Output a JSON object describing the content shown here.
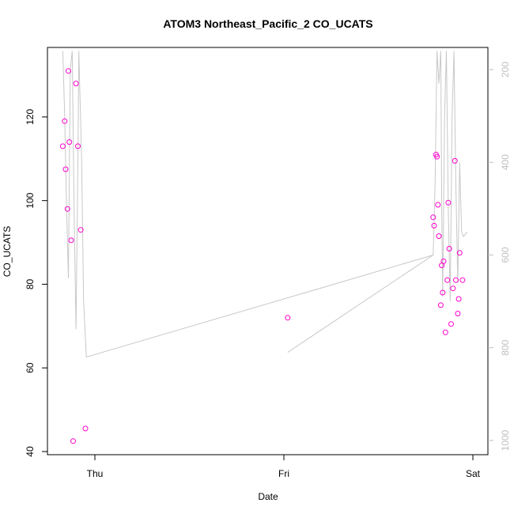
{
  "chart_data": {
    "type": "scatter",
    "title": "ATOM3 Northeast_Pacific_2 CO_UCATS",
    "xlabel": "Date",
    "ylabel": "CO_UCATS",
    "x_tick_labels": [
      "Thu",
      "Fri",
      "Sat"
    ],
    "x_range_days": [
      -0.2,
      2.0
    ],
    "ylim": [
      40,
      135
    ],
    "y_ticks": [
      40,
      60,
      80,
      100,
      120
    ],
    "y2_ticks": [
      200,
      400,
      600,
      800,
      1000
    ],
    "y2lim": [
      160,
      1040
    ],
    "y2_reversed": true,
    "grid": false,
    "colors": {
      "points": "#ff00cc",
      "altitude_line": "#c8c8c8",
      "right_axis": "#bfbfbf"
    },
    "series": [
      {
        "role": "points",
        "points": [
          [
            -0.17,
            113
          ],
          [
            -0.16,
            119
          ],
          [
            -0.155,
            107.5
          ],
          [
            -0.145,
            98
          ],
          [
            -0.14,
            131
          ],
          [
            -0.135,
            114
          ],
          [
            -0.125,
            90.5
          ],
          [
            -0.115,
            42.5
          ],
          [
            -0.1,
            128
          ],
          [
            -0.09,
            113
          ],
          [
            -0.075,
            93
          ],
          [
            -0.05,
            45.5
          ],
          [
            1.02,
            72
          ],
          [
            1.79,
            96
          ],
          [
            1.795,
            94
          ],
          [
            1.805,
            111
          ],
          [
            1.81,
            110.5
          ],
          [
            1.815,
            99
          ],
          [
            1.82,
            91.5
          ],
          [
            1.83,
            75
          ],
          [
            1.835,
            84.5
          ],
          [
            1.84,
            78
          ],
          [
            1.845,
            85.5
          ],
          [
            1.855,
            68.5
          ],
          [
            1.865,
            81
          ],
          [
            1.87,
            99.5
          ],
          [
            1.875,
            88.5
          ],
          [
            1.885,
            70.5
          ],
          [
            1.895,
            79
          ],
          [
            1.905,
            109.5
          ],
          [
            1.91,
            81
          ],
          [
            1.92,
            73
          ],
          [
            1.925,
            76.5
          ],
          [
            1.93,
            87.5
          ],
          [
            1.945,
            81
          ]
        ]
      },
      {
        "role": "altitude_line",
        "segments": [
          [
            [
              -0.17,
              160
            ],
            [
              -0.16,
              300
            ],
            [
              -0.15,
              500
            ],
            [
              -0.14,
              650
            ],
            [
              -0.13,
              200
            ],
            [
              -0.12,
              160
            ],
            [
              -0.11,
              500
            ],
            [
              -0.1,
              760
            ],
            [
              -0.09,
              400
            ],
            [
              -0.085,
              160
            ],
            [
              -0.07,
              400
            ],
            [
              -0.06,
              700
            ],
            [
              -0.045,
              820
            ],
            [
              1.79,
              600
            ]
          ],
          [
            [
              1.02,
              810
            ],
            [
              1.79,
              600
            ],
            [
              1.8,
              450
            ],
            [
              1.81,
              160
            ],
            [
              1.82,
              230
            ],
            [
              1.83,
              160
            ],
            [
              1.835,
              500
            ],
            [
              1.84,
              690
            ],
            [
              1.85,
              300
            ],
            [
              1.86,
              160
            ],
            [
              1.87,
              500
            ],
            [
              1.88,
              700
            ],
            [
              1.89,
              300
            ],
            [
              1.9,
              160
            ],
            [
              1.91,
              450
            ],
            [
              1.92,
              660
            ],
            [
              1.93,
              400
            ],
            [
              1.94,
              550
            ],
            [
              1.95,
              560
            ],
            [
              1.97,
              550
            ]
          ]
        ]
      }
    ]
  }
}
